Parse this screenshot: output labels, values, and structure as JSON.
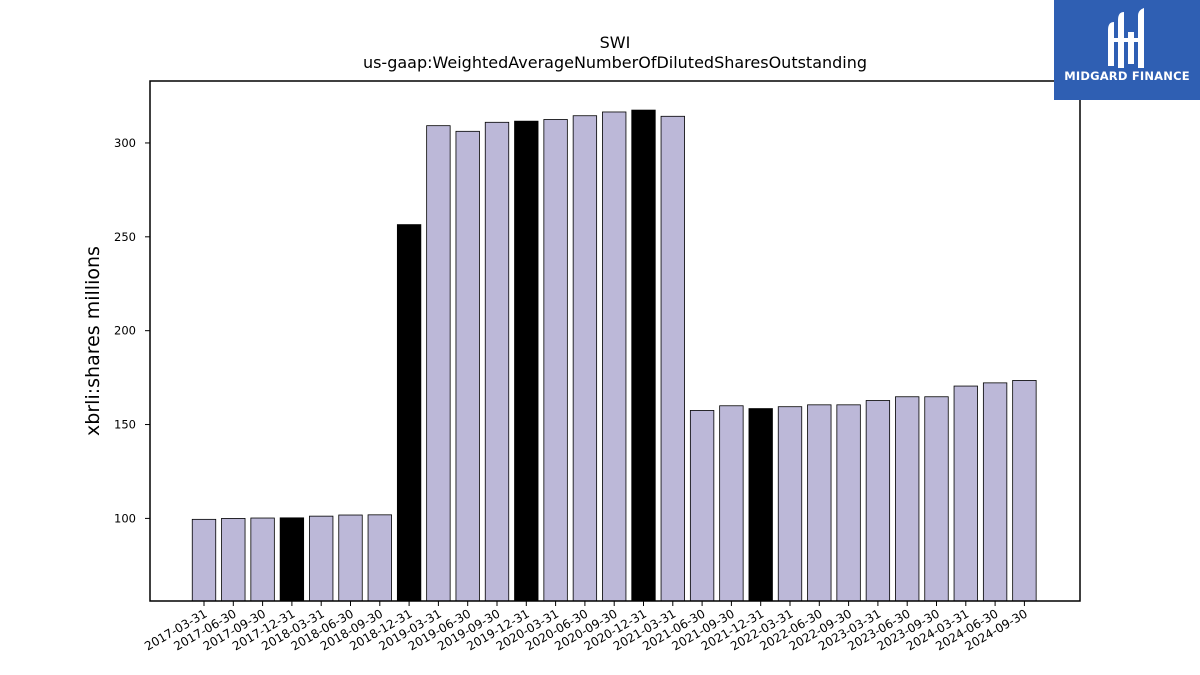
{
  "chart_data": {
    "type": "bar",
    "title": "SWI",
    "subtitle": "us-gaap:WeightedAverageNumberOfDilutedSharesOutstanding",
    "xlabel": "",
    "ylabel": "xbrli:shares millions",
    "ylim": [
      56,
      333
    ],
    "yticks": [
      100,
      150,
      200,
      250,
      300
    ],
    "grid": false,
    "categories": [
      "2017-03-31",
      "2017-06-30",
      "2017-09-30",
      "2017-12-31",
      "2018-03-31",
      "2018-06-30",
      "2018-09-30",
      "2018-12-31",
      "2019-03-31",
      "2019-06-30",
      "2019-09-30",
      "2019-12-31",
      "2020-03-31",
      "2020-06-30",
      "2020-09-30",
      "2020-12-31",
      "2021-03-31",
      "2021-06-30",
      "2021-09-30",
      "2021-12-31",
      "2022-03-31",
      "2022-06-30",
      "2022-09-30",
      "2023-03-31",
      "2023-06-30",
      "2023-09-30",
      "2024-03-31",
      "2024-06-30",
      "2024-09-30"
    ],
    "values": [
      99.5,
      100.0,
      100.2,
      100.3,
      101.2,
      101.8,
      101.9,
      256.5,
      309.2,
      306.2,
      311.0,
      311.6,
      312.5,
      314.5,
      316.5,
      317.5,
      314.2,
      157.5,
      160.0,
      158.5,
      159.5,
      160.5,
      160.5,
      162.8,
      164.8,
      164.8,
      170.5,
      172.2,
      173.5
    ],
    "highlight": [
      false,
      false,
      false,
      true,
      false,
      false,
      false,
      true,
      false,
      false,
      false,
      true,
      false,
      false,
      false,
      true,
      false,
      false,
      false,
      true,
      false,
      false,
      false,
      false,
      false,
      false,
      false,
      false,
      false
    ],
    "colors": {
      "bar": "#bcb8d8",
      "highlight": "#000000",
      "edge": "#000000"
    }
  },
  "logo": {
    "text": "MIDGARD FINANCE",
    "background": "#2f5fb3"
  }
}
